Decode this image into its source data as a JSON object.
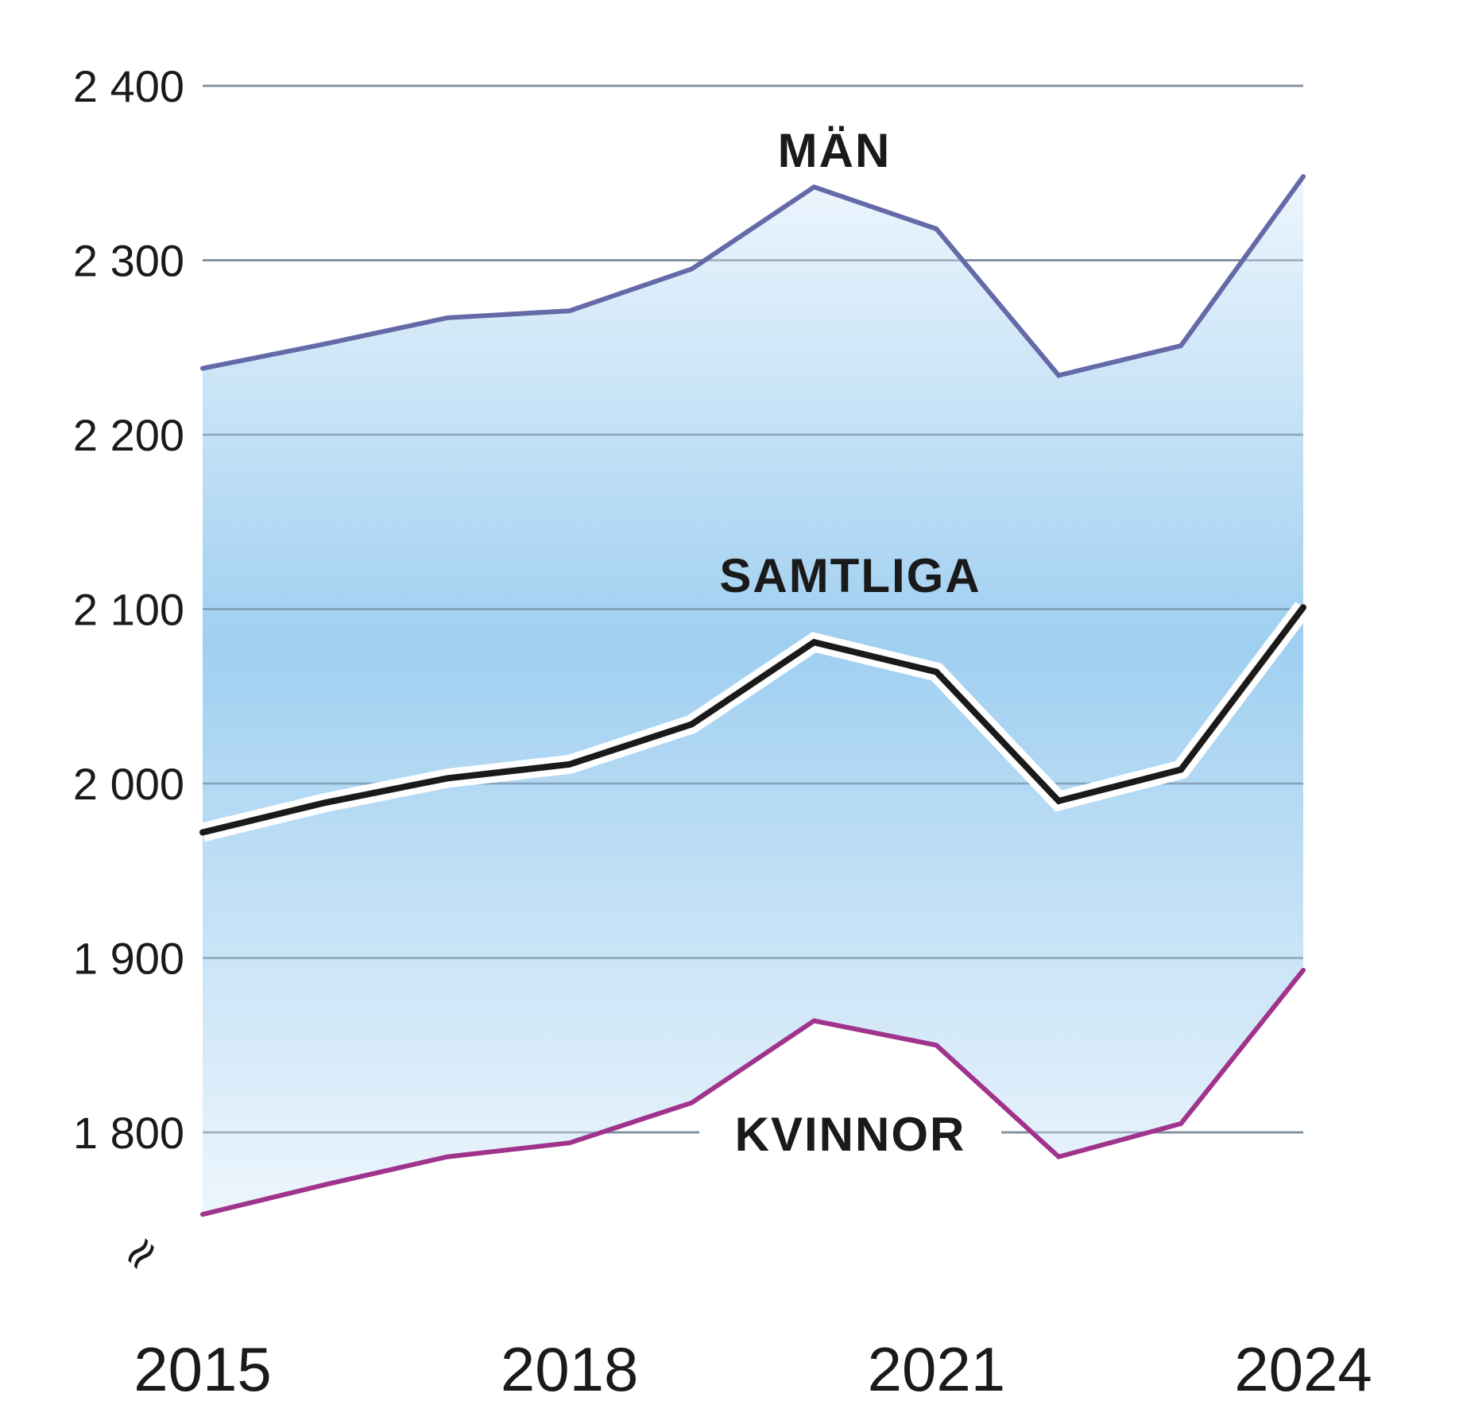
{
  "chart_data": {
    "type": "line",
    "x": [
      2015,
      2016,
      2017,
      2018,
      2019,
      2020,
      2021,
      2022,
      2023,
      2024
    ],
    "x_tick_labels": [
      "2015",
      "2018",
      "2021",
      "2024"
    ],
    "x_tick_values": [
      2015,
      2018,
      2021,
      2024
    ],
    "y_tick_labels": [
      "2 400",
      "2 300",
      "2 200",
      "2 100",
      "2 000",
      "1 900",
      "1 800"
    ],
    "y_tick_values": [
      2400,
      2300,
      2200,
      2100,
      2000,
      1900,
      1800
    ],
    "ylim": [
      1740,
      2400
    ],
    "axis_break_mark": "≈",
    "grid": true,
    "series": [
      {
        "name": "MÄN",
        "color": "#6469a8",
        "values": [
          2238,
          2252,
          2267,
          2271,
          2295,
          2342,
          2318,
          2234,
          2251,
          2348
        ]
      },
      {
        "name": "SAMTLIGA",
        "color": "#1a1a1a",
        "values": [
          1972,
          1989,
          2003,
          2011,
          2034,
          2081,
          2064,
          1990,
          2008,
          2101
        ]
      },
      {
        "name": "KVINNOR",
        "color": "#a0338c",
        "values": [
          1753,
          1770,
          1786,
          1794,
          1817,
          1864,
          1850,
          1786,
          1805,
          1893
        ]
      }
    ],
    "band_fill": {
      "edge_color": "#eaf4fc",
      "center_color": "#8fc7ee"
    }
  }
}
